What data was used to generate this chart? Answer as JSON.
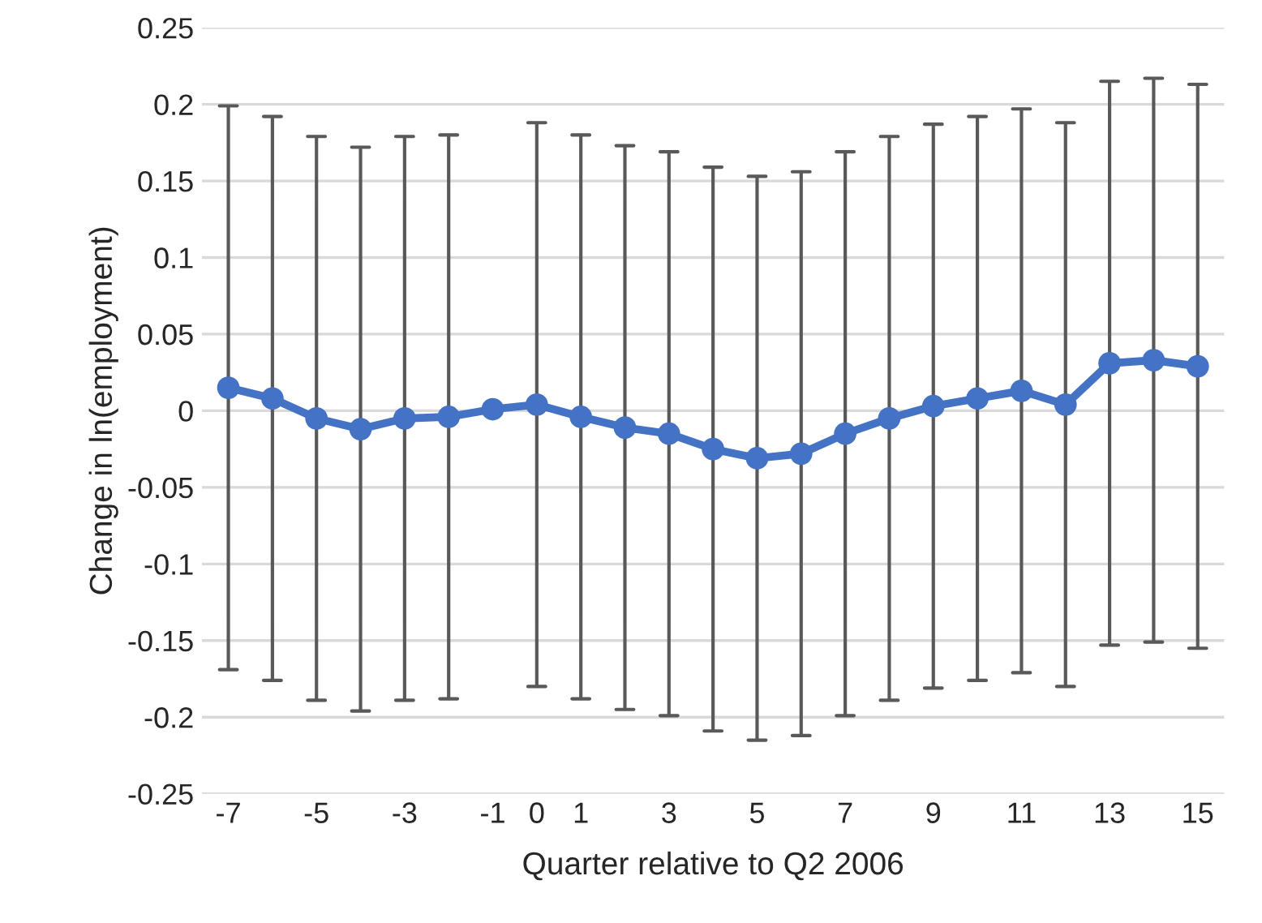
{
  "chart_data": {
    "type": "line",
    "xlabel": "Quarter relative to Q2 2006",
    "ylabel": "Change in ln(employment)",
    "categories": [
      "-7",
      null,
      "-5",
      null,
      "-3",
      null,
      "-1",
      "0",
      "1",
      null,
      "3",
      null,
      "5",
      null,
      "7",
      null,
      "9",
      null,
      "11",
      null,
      "13",
      null,
      "15"
    ],
    "series": [
      {
        "color": "#4472c4",
        "values": [
          0.015,
          0.008,
          -0.005,
          -0.012,
          -0.005,
          -0.004,
          0.001,
          0.004,
          -0.004,
          -0.011,
          -0.015,
          -0.025,
          -0.031,
          -0.028,
          -0.015,
          -0.005,
          0.003,
          0.008,
          0.013,
          0.004,
          0.031,
          0.033,
          0.029
        ],
        "errors": [
          0.184,
          0.184,
          0.184,
          0.184,
          0.184,
          0.184,
          null,
          0.184,
          0.184,
          0.184,
          0.184,
          0.184,
          0.184,
          0.184,
          0.184,
          0.184,
          0.184,
          0.184,
          0.184,
          0.184,
          0.184,
          0.184,
          0.184
        ]
      }
    ],
    "ylim": [
      -0.25,
      0.25
    ],
    "yticks": [
      {
        "value": -0.25,
        "label": "-0.25"
      },
      {
        "value": -0.2,
        "label": "-0.2"
      },
      {
        "value": -0.15,
        "label": "-0.15"
      },
      {
        "value": -0.1,
        "label": "-0.1"
      },
      {
        "value": -0.05,
        "label": "-0.05"
      },
      0,
      0.05,
      0.1,
      0.15,
      0.2,
      0.25
    ],
    "grid": "y",
    "marker": "circle",
    "line_style": "solid",
    "legend": false
  }
}
